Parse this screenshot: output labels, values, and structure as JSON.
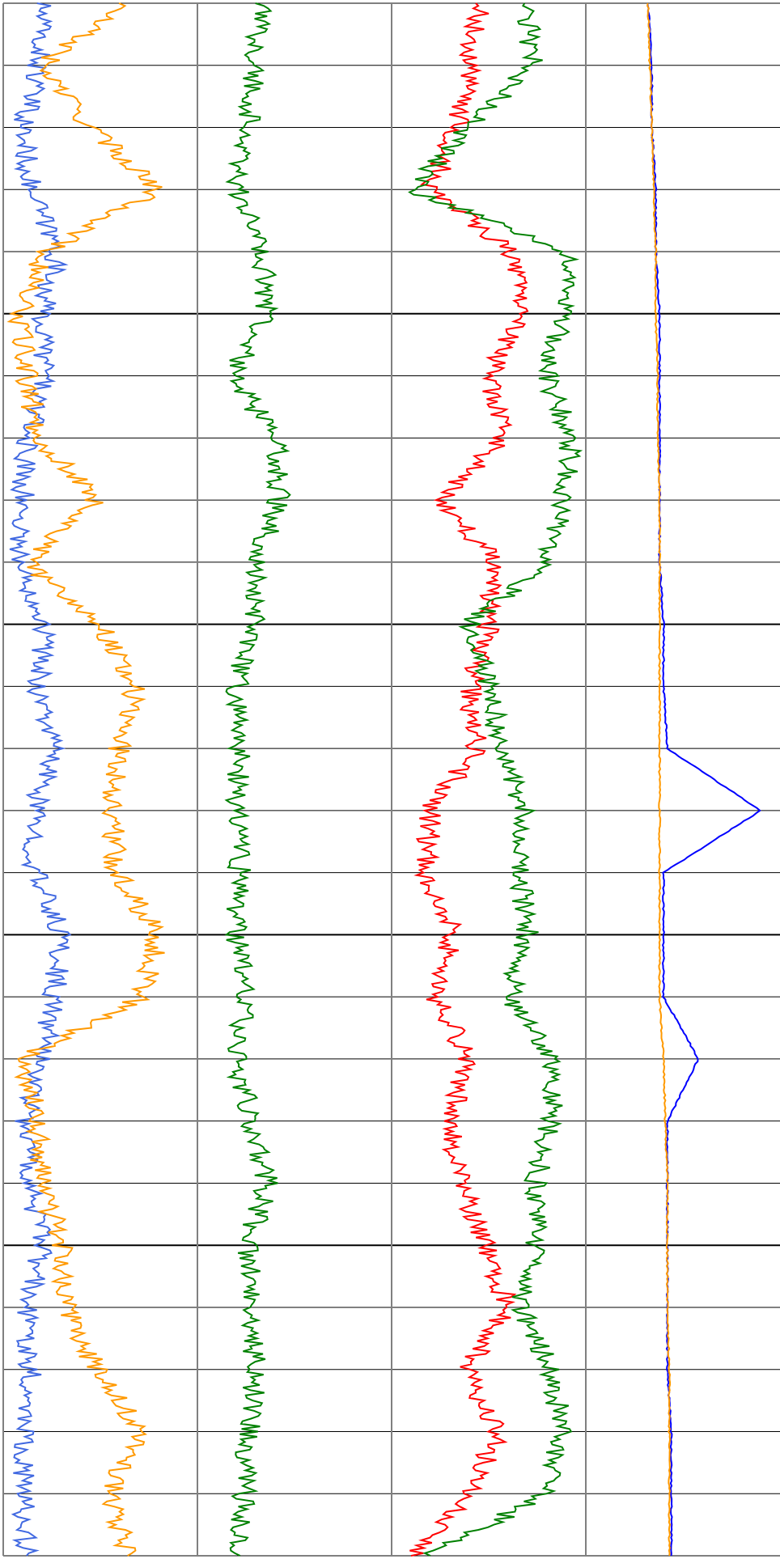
{
  "chart_data": {
    "type": "line",
    "title": "",
    "orientation": "vertical-depth",
    "legend": "none",
    "grid": true,
    "tracks": [
      {
        "id": "track-1",
        "xlim": [
          0,
          100
        ],
        "series": [
          {
            "color": "#4169e1",
            "y": [
              0,
              1,
              2,
              3,
              4,
              5,
              6,
              7,
              8,
              9,
              10,
              11,
              12,
              13,
              14,
              15,
              16,
              17,
              18,
              19,
              20,
              21,
              22,
              23,
              24,
              25
            ],
            "x": [
              20,
              18,
              10,
              14,
              28,
              20,
              22,
              12,
              10,
              8,
              22,
              18,
              26,
              16,
              16,
              30,
              26,
              20,
              12,
              14,
              20,
              12,
              14,
              12,
              10,
              12
            ]
          },
          {
            "color": "#ff9900",
            "y": [
              0,
              1,
              2,
              3,
              4,
              5,
              6,
              7,
              8,
              9,
              10,
              11,
              12,
              13,
              14,
              15,
              16,
              17,
              18,
              19,
              20,
              21,
              22,
              23,
              24,
              25
            ],
            "x": [
              62,
              20,
              45,
              80,
              22,
              8,
              12,
              18,
              48,
              12,
              50,
              68,
              60,
              56,
              58,
              80,
              72,
              10,
              18,
              20,
              30,
              32,
              48,
              70,
              55,
              64
            ]
          }
        ]
      },
      {
        "id": "track-2",
        "xlim": [
          0,
          100
        ],
        "series": [
          {
            "color": "#008000",
            "y": [
              0,
              1,
              2,
              3,
              4,
              5,
              6,
              7,
              8,
              9,
              10,
              11,
              12,
              13,
              14,
              15,
              16,
              17,
              18,
              19,
              20,
              21,
              22,
              23,
              24,
              25
            ],
            "x": [
              32,
              30,
              26,
              20,
              34,
              36,
              18,
              40,
              42,
              30,
              30,
              20,
              22,
              20,
              22,
              20,
              24,
              20,
              28,
              36,
              26,
              28,
              30,
              26,
              24,
              22
            ]
          }
        ]
      },
      {
        "id": "track-3",
        "xlim": [
          0,
          100
        ],
        "series": [
          {
            "color": "#ff0000",
            "y": [
              0,
              1,
              2,
              3,
              4,
              5,
              6,
              7,
              8,
              9,
              10,
              11,
              12,
              13,
              14,
              15,
              16,
              17,
              18,
              19,
              20,
              21,
              22,
              23,
              24,
              25
            ],
            "x": [
              45,
              40,
              34,
              20,
              62,
              66,
              50,
              58,
              24,
              54,
              50,
              40,
              44,
              20,
              18,
              32,
              22,
              40,
              30,
              36,
              48,
              60,
              38,
              55,
              40,
              10
            ]
          },
          {
            "color": "#008000",
            "y": [
              0,
              1,
              2,
              3,
              4,
              5,
              6,
              7,
              8,
              9,
              10,
              11,
              12,
              13,
              14,
              15,
              16,
              17,
              18,
              19,
              20,
              21,
              22,
              23,
              24,
              25
            ],
            "x": [
              70,
              72,
              40,
              10,
              90,
              88,
              80,
              92,
              88,
              80,
              40,
              50,
              56,
              68,
              66,
              70,
              60,
              84,
              82,
              74,
              74,
              66,
              82,
              88,
              80,
              20
            ]
          }
        ]
      },
      {
        "id": "track-4",
        "xlim": [
          0,
          100
        ],
        "series": [
          {
            "color": "#0000ff",
            "y": [
              0,
              1,
              2,
              3,
              4,
              5,
              6,
              7,
              8,
              9,
              10,
              11,
              12,
              13,
              14,
              15,
              16,
              17,
              18,
              19,
              20,
              21,
              22,
              23,
              24,
              25
            ],
            "x": [
              32,
              34,
              34,
              36,
              36,
              38,
              38,
              38,
              38,
              38,
              40,
              40,
              42,
              90,
              40,
              40,
              40,
              58,
              42,
              42,
              42,
              42,
              42,
              44,
              44,
              44
            ]
          },
          {
            "color": "#ff9900",
            "y": [
              0,
              1,
              2,
              3,
              4,
              5,
              6,
              7,
              8,
              9,
              10,
              11,
              12,
              13,
              14,
              15,
              16,
              17,
              18,
              19,
              20,
              21,
              22,
              23,
              24,
              25
            ],
            "x": [
              32,
              33,
              34,
              35,
              36,
              36,
              37,
              37,
              38,
              38,
              38,
              38,
              38,
              38,
              38,
              38,
              38,
              40,
              41,
              42,
              42,
              42,
              43,
              43,
              43,
              43
            ]
          }
        ]
      }
    ]
  }
}
